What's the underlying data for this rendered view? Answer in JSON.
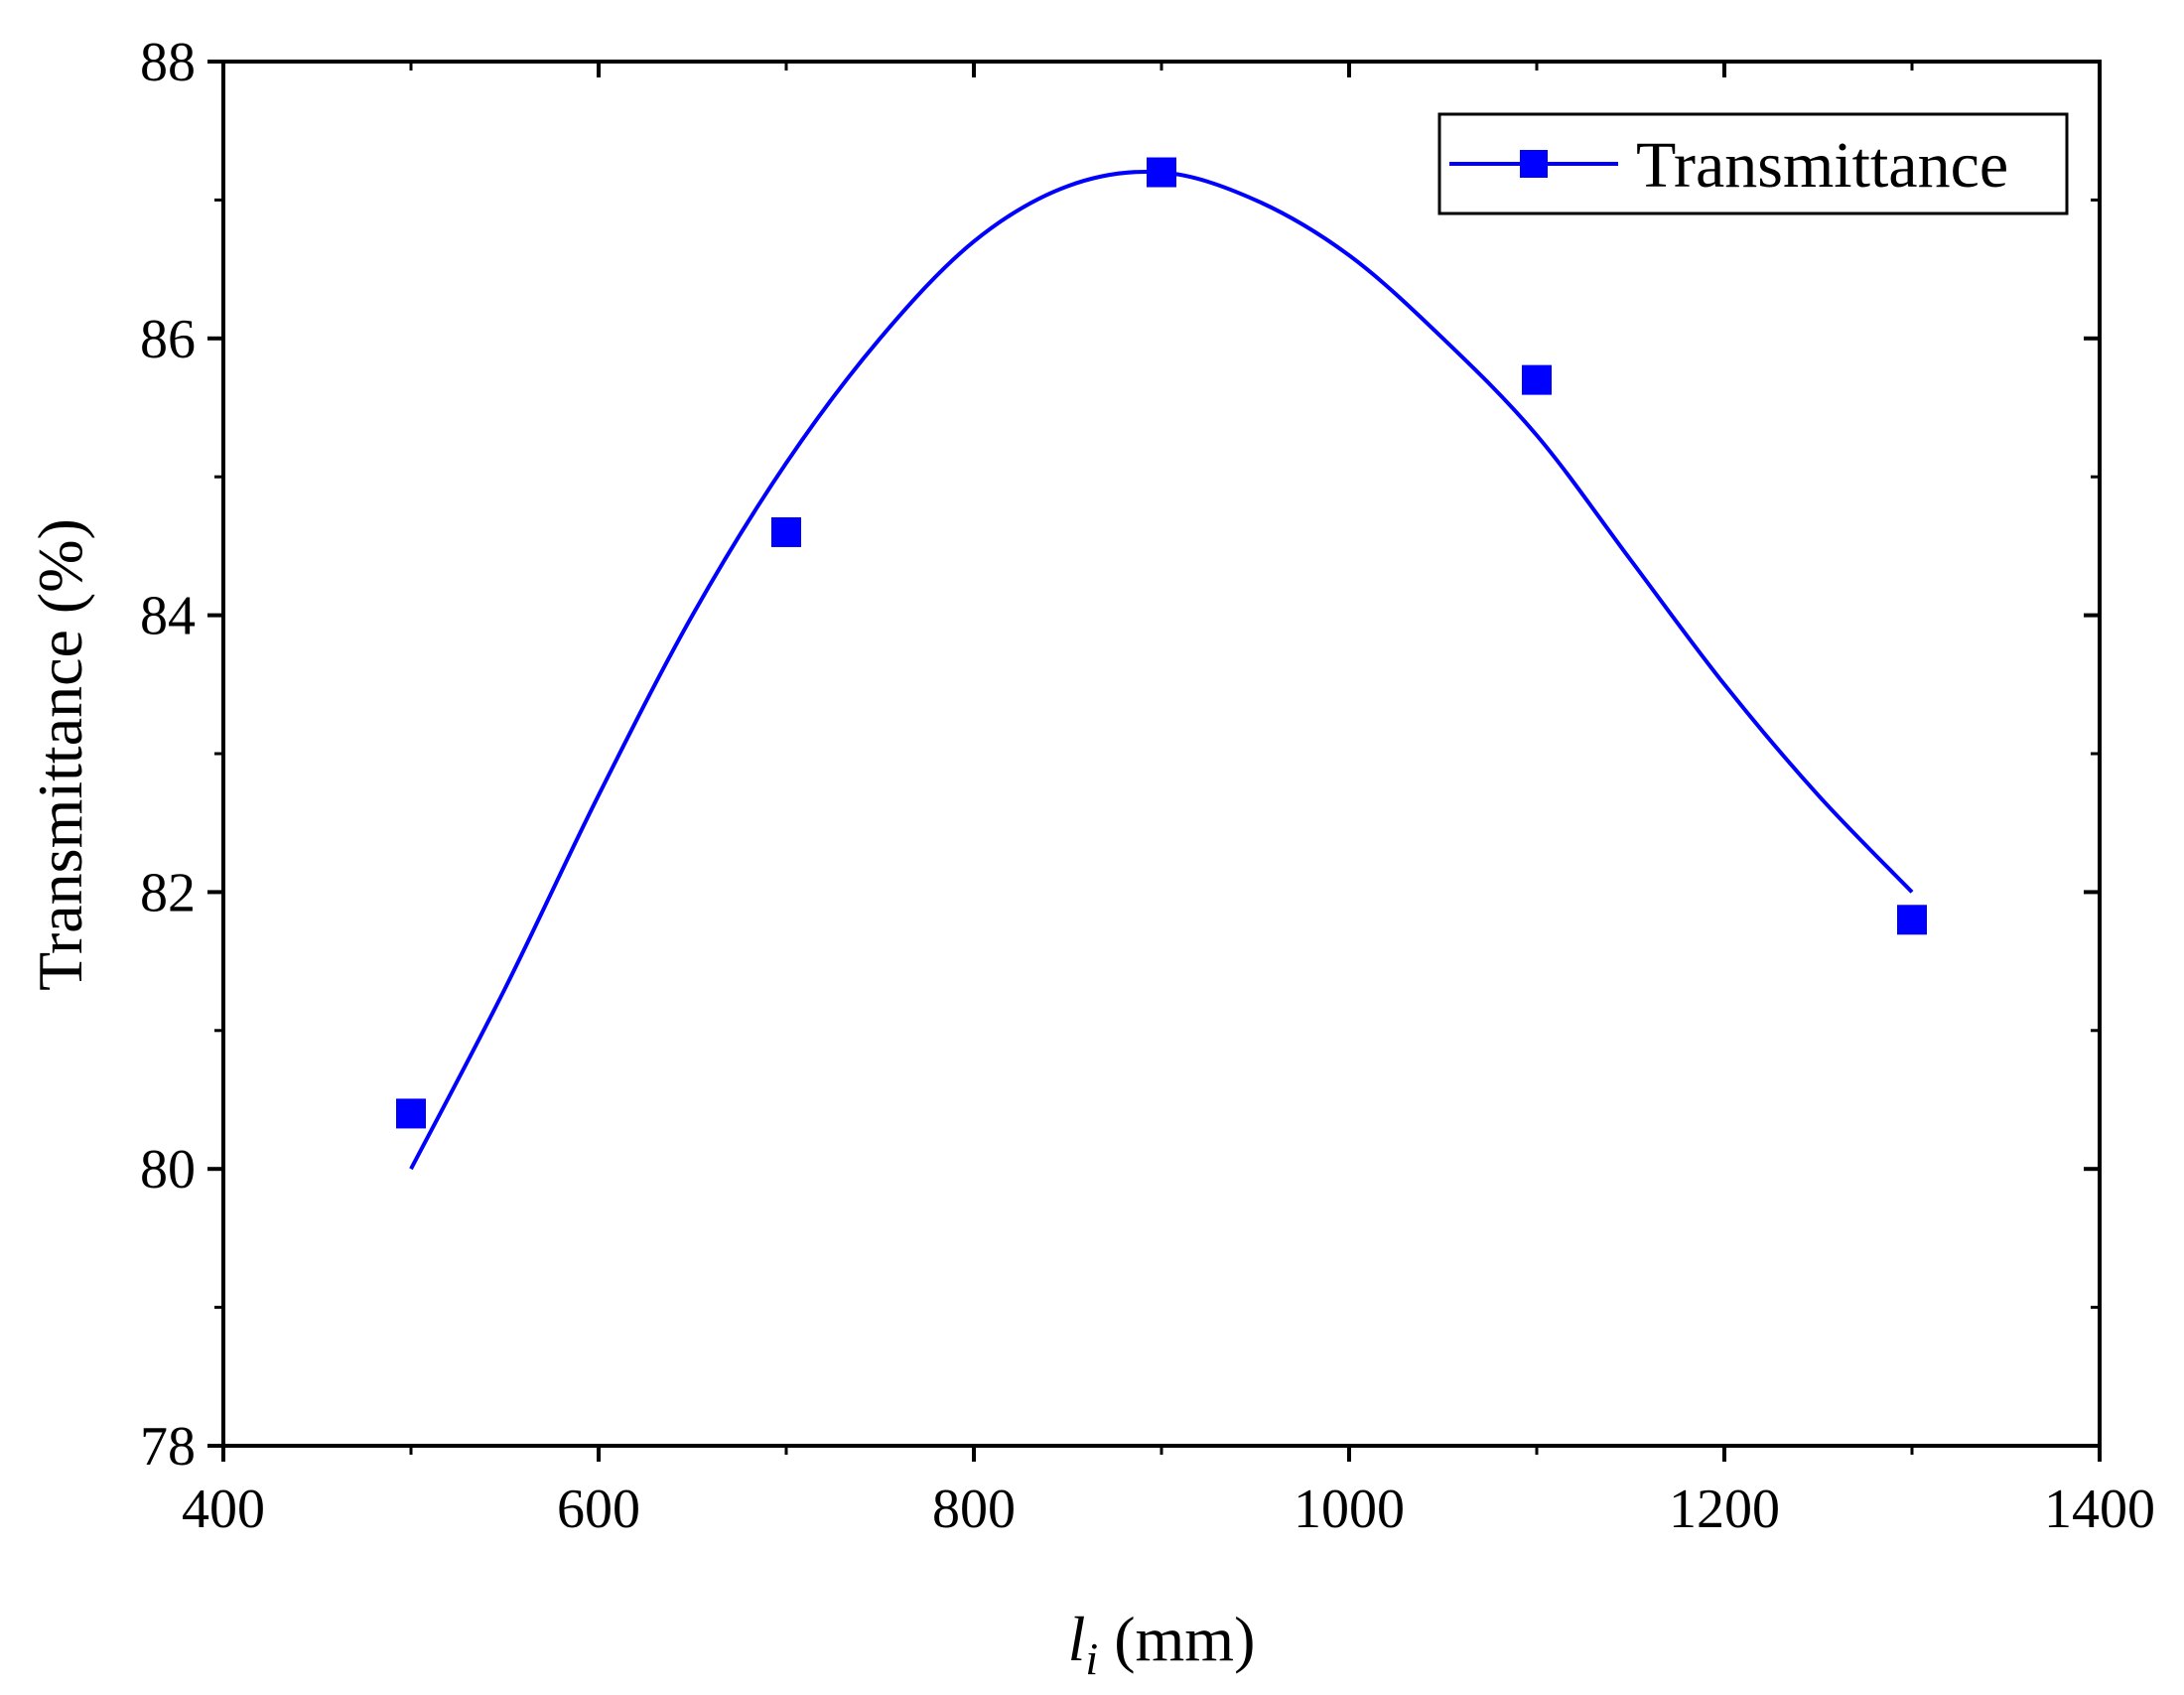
{
  "chart_data": {
    "type": "line",
    "title": "",
    "xlabel_var": "l",
    "xlabel_sub": "i",
    "xlabel_unit": " (mm)",
    "ylabel": "Transmittance (%)",
    "xlim": [
      400,
      1400
    ],
    "ylim": [
      78,
      88
    ],
    "x_ticks": [
      400,
      600,
      800,
      1000,
      1200,
      1400
    ],
    "y_ticks": [
      78,
      80,
      82,
      84,
      86,
      88
    ],
    "grid": false,
    "legend_position": "top-right",
    "series": [
      {
        "name": "Transmittance",
        "color": "#0000ff",
        "marker": "square",
        "x": [
          500,
          700,
          900,
          1100,
          1300
        ],
        "y": [
          80.4,
          84.6,
          87.2,
          85.7,
          81.8
        ],
        "fit_curve": {
          "x": [
            500,
            550,
            600,
            650,
            700,
            750,
            800,
            850,
            900,
            950,
            1000,
            1050,
            1100,
            1150,
            1200,
            1250,
            1300
          ],
          "y": [
            80.0,
            81.3,
            82.7,
            84.0,
            85.1,
            86.0,
            86.7,
            87.1,
            87.2,
            87.0,
            86.6,
            86.0,
            85.3,
            84.4,
            83.5,
            82.7,
            82.0
          ]
        }
      }
    ]
  }
}
